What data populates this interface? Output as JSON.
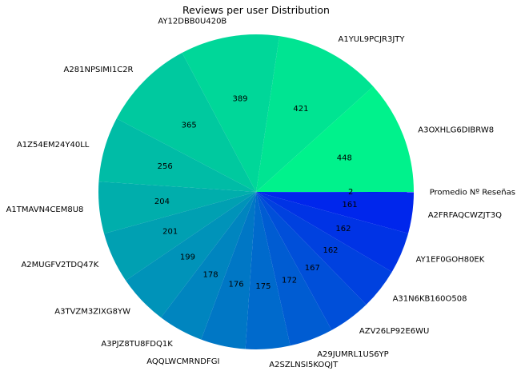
{
  "chart_data": {
    "type": "pie",
    "title": "Reviews per user Distribution",
    "start_angle_deg": 0,
    "direction": "counterclockwise",
    "slices": [
      {
        "label": "A3OXHLG6DIBRW8",
        "value": 448
      },
      {
        "label": "A1YUL9PCJR3JTY",
        "value": 421
      },
      {
        "label": "AY12DBB0U420B",
        "value": 389
      },
      {
        "label": "A281NPSIMI1C2R",
        "value": 365
      },
      {
        "label": "A1Z54EM24Y40LL",
        "value": 256
      },
      {
        "label": "A1TMAVN4CEM8U8",
        "value": 204
      },
      {
        "label": "A2MUGFV2TDQ47K",
        "value": 201
      },
      {
        "label": "A3TVZM3ZIXG8YW",
        "value": 199
      },
      {
        "label": "A3PJZ8TU8FDQ1K",
        "value": 178
      },
      {
        "label": "AQQLWCMRNDFGI",
        "value": 176
      },
      {
        "label": "A2SZLNSI5KOQJT",
        "value": 175
      },
      {
        "label": "A29JUMRL1US6YP",
        "value": 172
      },
      {
        "label": "AZV26LP92E6WU",
        "value": 167
      },
      {
        "label": "A31N6KB160O508",
        "value": 162
      },
      {
        "label": "AY1EF0GOH80EK",
        "value": 162
      },
      {
        "label": "A2FRFAQCWZJT3Q",
        "value": 161
      },
      {
        "label": "Promedio Nº Reseñas",
        "value": 2
      }
    ],
    "colormap": "winter_r",
    "colors": {
      "start": "#00f28c",
      "end": "#0018f2"
    }
  }
}
